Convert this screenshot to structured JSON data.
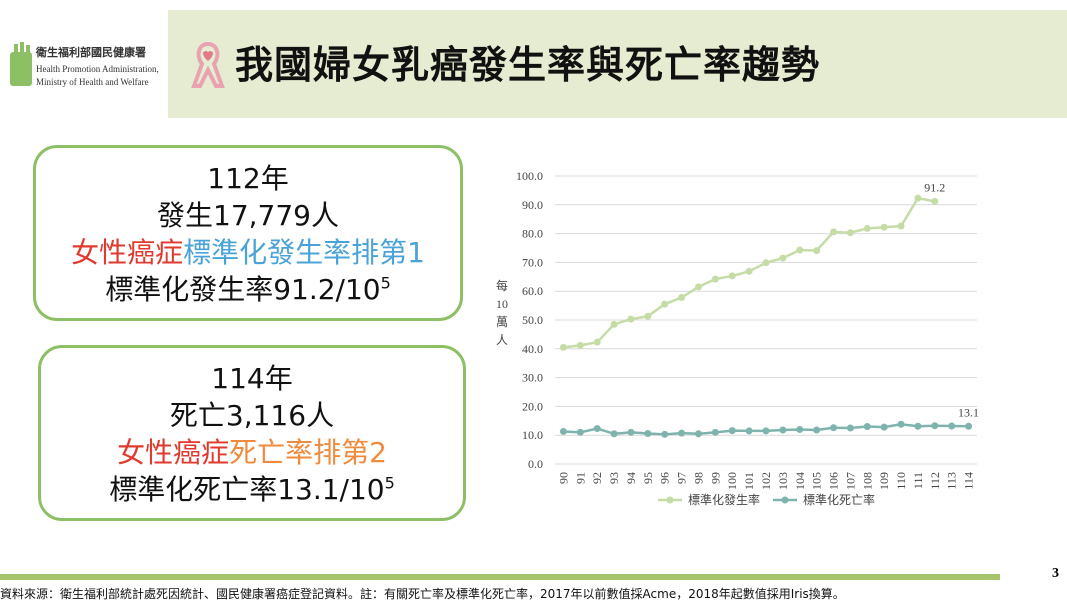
{
  "header": {
    "org": "衛生福利部國民健康署",
    "org_en_1": "Health Promotion Administration,",
    "org_en_2": "Ministry of Health and Welfare",
    "title": "我國婦女乳癌發生率與死亡率趨勢"
  },
  "boxes": [
    {
      "lines": [
        [
          {
            "text": "112年",
            "color": "#111111"
          }
        ],
        [
          {
            "text": "發生17,779人",
            "color": "#111111"
          }
        ],
        [
          {
            "text": "女性癌症",
            "color": "#e03a2e"
          },
          {
            "text": "標準化發生率排第1",
            "color": "#4aa3d8"
          }
        ],
        [
          {
            "text": "標準化發生率91.2/10",
            "color": "#111111"
          },
          {
            "text": "5",
            "color": "#111111",
            "sup": true
          }
        ]
      ]
    },
    {
      "lines": [
        [
          {
            "text": "114年",
            "color": "#111111"
          }
        ],
        [
          {
            "text": "死亡3,116人",
            "color": "#111111"
          }
        ],
        [
          {
            "text": "女性癌症",
            "color": "#e03a2e"
          },
          {
            "text": "死亡率排第2",
            "color": "#f08a3c"
          }
        ],
        [
          {
            "text": "標準化死亡率13.1/10",
            "color": "#111111"
          },
          {
            "text": "5",
            "color": "#111111",
            "sup": true
          }
        ]
      ]
    }
  ],
  "chart_data": {
    "type": "line",
    "y_label": "每10萬人",
    "categories": [
      "90",
      "91",
      "92",
      "93",
      "94",
      "95",
      "96",
      "97",
      "98",
      "99",
      "100",
      "101",
      "102",
      "103",
      "104",
      "105",
      "106",
      "107",
      "108",
      "109",
      "110",
      "111",
      "112",
      "113",
      "114"
    ],
    "series": [
      {
        "name": "標準化發生率",
        "color": "#c5dca6",
        "values": [
          40.5,
          41.2,
          42.3,
          48.5,
          50.3,
          51.3,
          55.5,
          57.8,
          61.5,
          64.2,
          65.3,
          66.9,
          69.9,
          71.5,
          74.3,
          74.1,
          80.6,
          80.3,
          81.8,
          82.2,
          82.6,
          92.3,
          91.2,
          null,
          null
        ]
      },
      {
        "name": "標準化死亡率",
        "color": "#7fb3ad",
        "values": [
          11.3,
          11.0,
          12.3,
          10.5,
          11.0,
          10.6,
          10.3,
          10.7,
          10.5,
          11.0,
          11.6,
          11.5,
          11.5,
          11.8,
          12.0,
          11.8,
          12.6,
          12.5,
          13.0,
          12.8,
          13.8,
          13.1,
          13.3,
          13.2,
          13.1
        ]
      }
    ],
    "ylim": [
      0,
      100
    ],
    "yticks": [
      {
        "value": 0,
        "label": "0.0"
      },
      {
        "value": 10,
        "label": "10.0"
      },
      {
        "value": 20,
        "label": "20.0"
      },
      {
        "value": 30,
        "label": "30.0"
      },
      {
        "value": 40,
        "label": "40.0"
      },
      {
        "value": 50,
        "label": "50.0"
      },
      {
        "value": 60,
        "label": "60.0"
      },
      {
        "value": 70,
        "label": "70.0"
      },
      {
        "value": 80,
        "label": "80.0"
      },
      {
        "value": 90,
        "label": "90.0"
      },
      {
        "value": 100,
        "label": "100.0"
      }
    ],
    "grid": true,
    "legend": "bottom"
  },
  "footer": {
    "source": "資料來源：衛生福利部統計處死因統計、國民健康署癌症登記資料。註：有關死亡率及標準化死亡率，2017年以前數值採Acme，2018年起數值採用Iris換算。",
    "page": "3"
  }
}
